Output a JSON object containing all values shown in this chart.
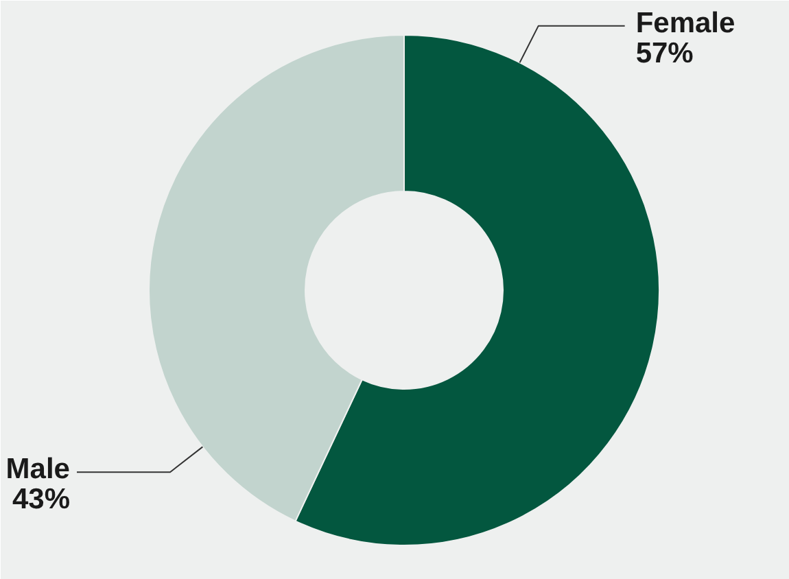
{
  "chart_data": {
    "type": "donut",
    "categories": [
      "Female",
      "Male"
    ],
    "values": [
      57,
      43
    ],
    "colors": [
      "#03573f",
      "#c2d4ce"
    ],
    "value_labels": [
      "57%",
      "43%"
    ]
  }
}
